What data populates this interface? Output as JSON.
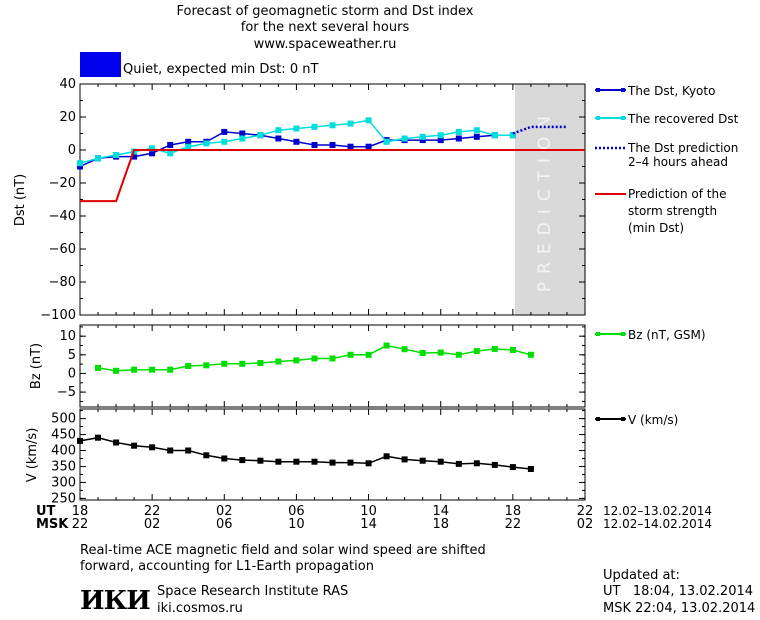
{
  "header": {
    "title_line1": "Forecast of geomagnetic storm and Dst index",
    "title_line2": "for the next several hours",
    "site": "www.spaceweather.ru",
    "status": "Quiet, expected min Dst: 0 nT",
    "status_color": "#0000ee"
  },
  "legend": {
    "dst_kyoto": "The Dst, Kyoto",
    "recovered": "The recovered Dst",
    "prediction_line1": "The Dst prediction",
    "prediction_line2": "2–4 hours ahead",
    "storm_line1": "Prediction of the",
    "storm_line2": "storm strength",
    "storm_line3": "(min Dst)",
    "bz": "Bz (nT, GSM)",
    "v": "V (km/s)"
  },
  "prediction_band_label": "PREDICTION",
  "time_axis": {
    "ut_label": "UT",
    "msk_label": "MSK",
    "ut_ticks": [
      "18",
      "22",
      "02",
      "06",
      "10",
      "14",
      "18",
      "22"
    ],
    "msk_ticks": [
      "22",
      "02",
      "06",
      "10",
      "14",
      "18",
      "22",
      "02"
    ],
    "ut_range": "12.02–13.02.2014",
    "msk_range": "12.02–14.02.2014"
  },
  "footer": {
    "note_line1": "Real-time ACE magnetic field and solar wind speed are shifted",
    "note_line2": "forward, accounting for L1-Earth propagation",
    "logo_text": "ИКИ",
    "institute": "Space Research Institute RAS",
    "url": "iki.cosmos.ru",
    "updated_label": "Updated at:",
    "updated_ut": "UT   18:04, 13.02.2014",
    "updated_msk": "MSK 22:04, 13.02.2014"
  },
  "chart_data": [
    {
      "type": "line",
      "panel": "dst",
      "ylabel": "Dst (nT)",
      "ylim": [
        -100,
        40
      ],
      "yticks": [
        40,
        20,
        0,
        -20,
        -40,
        -60,
        -80,
        -100
      ],
      "xlim": [
        0,
        28
      ],
      "prediction_band": [
        24,
        28
      ],
      "series": [
        {
          "name": "The Dst, Kyoto",
          "color": "#0000cc",
          "x": [
            0,
            1,
            2,
            3,
            4,
            5,
            6,
            7,
            8,
            9,
            10,
            11,
            12,
            13,
            14,
            15,
            16,
            17,
            18,
            19,
            20,
            21,
            22,
            23,
            24
          ],
          "values": [
            -10,
            -5,
            -4,
            -4,
            -2,
            3,
            5,
            5,
            11,
            10,
            9,
            7,
            5,
            3,
            3,
            2,
            2,
            6,
            6,
            6,
            6,
            7,
            8,
            9,
            9
          ]
        },
        {
          "name": "The recovered Dst",
          "color": "#00dddd",
          "x": [
            0,
            1,
            2,
            3,
            4,
            5,
            6,
            7,
            8,
            9,
            10,
            11,
            12,
            13,
            14,
            15,
            16,
            17,
            18,
            19,
            20,
            21,
            22,
            23,
            24
          ],
          "values": [
            -8,
            -5,
            -3,
            -1,
            1,
            -2,
            2,
            4,
            5,
            7,
            9,
            12,
            13,
            14,
            15,
            16,
            18,
            5,
            7,
            8,
            9,
            11,
            12,
            9,
            9
          ]
        },
        {
          "name": "The Dst prediction 2–4 hours ahead",
          "color": "#0000cc",
          "style": "dotted",
          "x": [
            24,
            25,
            26,
            27
          ],
          "values": [
            10,
            14,
            14,
            14
          ]
        },
        {
          "name": "Prediction of the storm strength (min Dst)",
          "color": "#dd0000",
          "x": [
            0,
            2,
            3,
            28
          ],
          "values": [
            -31,
            -31,
            0,
            0
          ]
        }
      ]
    },
    {
      "type": "line",
      "panel": "bz",
      "ylabel": "Bz (nT)",
      "ylim": [
        -9,
        13
      ],
      "yticks": [
        10,
        5,
        0,
        -5
      ],
      "xlim": [
        0,
        28
      ],
      "series": [
        {
          "name": "Bz (nT, GSM)",
          "color": "#00dd00",
          "x": [
            1,
            2,
            3,
            4,
            5,
            6,
            7,
            8,
            9,
            10,
            11,
            12,
            13,
            14,
            15,
            16,
            17,
            18,
            19,
            20,
            21,
            22,
            23,
            24,
            25
          ],
          "values": [
            1.5,
            0.7,
            1,
            1,
            1,
            2,
            2.2,
            2.6,
            2.6,
            2.8,
            3.2,
            3.5,
            4,
            4,
            5,
            5,
            7.5,
            6.5,
            5.5,
            5.6,
            5,
            6,
            6.6,
            6.3,
            5
          ]
        }
      ]
    },
    {
      "type": "line",
      "panel": "v",
      "ylabel": "V (km/s)",
      "ylim": [
        245,
        530
      ],
      "yticks": [
        500,
        450,
        400,
        350,
        300,
        250
      ],
      "xlim": [
        0,
        28
      ],
      "series": [
        {
          "name": "V (km/s)",
          "color": "#000000",
          "x": [
            0,
            1,
            2,
            3,
            4,
            5,
            6,
            7,
            8,
            9,
            10,
            11,
            12,
            13,
            14,
            15,
            16,
            17,
            18,
            19,
            20,
            21,
            22,
            23,
            24,
            25
          ],
          "values": [
            430,
            440,
            425,
            415,
            410,
            400,
            400,
            385,
            375,
            370,
            368,
            365,
            365,
            365,
            362,
            362,
            360,
            382,
            372,
            368,
            365,
            358,
            360,
            355,
            348,
            342
          ]
        }
      ]
    }
  ]
}
